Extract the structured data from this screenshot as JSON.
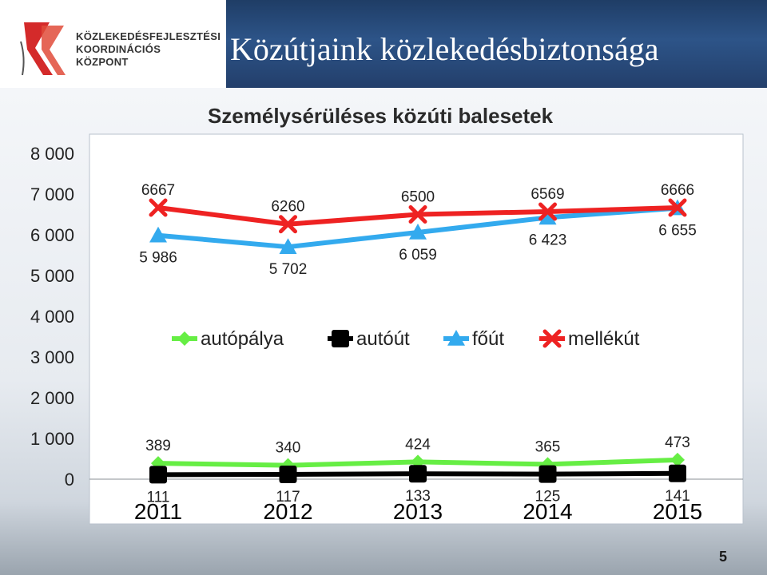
{
  "header": {
    "logo_lines": [
      "KÖZLEKEDÉSFEJLESZTÉSI",
      "KOORDINÁCIÓS",
      "KÖZPONT"
    ],
    "title": "Közútjaink közlekedésbiztonsága"
  },
  "page_number": "5",
  "colors": {
    "autopalya": "#66ee44",
    "autout": "#000000",
    "fout": "#33aaee",
    "mellekut": "#ee2222",
    "title_bar": "#2d5488"
  },
  "chart_data": {
    "type": "line",
    "title": "Személysérüléses közúti balesetek",
    "categories": [
      "2011",
      "2012",
      "2013",
      "2014",
      "2015"
    ],
    "ylim": [
      0,
      8000
    ],
    "yticks": [
      0,
      1000,
      2000,
      3000,
      4000,
      5000,
      6000,
      7000,
      8000
    ],
    "ytick_labels": [
      "0",
      "1 000",
      "2 000",
      "3 000",
      "4 000",
      "5 000",
      "6 000",
      "7 000",
      "8 000"
    ],
    "grid": false,
    "legend_position": "center",
    "series": [
      {
        "key": "autopalya",
        "name": "autópálya",
        "marker": "diamond",
        "values": [
          389,
          340,
          424,
          365,
          473
        ],
        "labels": [
          "389",
          "340",
          "424",
          "365",
          "473"
        ],
        "label_side": "above"
      },
      {
        "key": "autout",
        "name": "autóút",
        "marker": "square",
        "values": [
          111,
          117,
          133,
          125,
          141
        ],
        "labels": [
          "111",
          "117",
          "133",
          "125",
          "141"
        ],
        "label_side": "below"
      },
      {
        "key": "fout",
        "name": "főút",
        "marker": "triangle",
        "values": [
          5986,
          5702,
          6059,
          6423,
          6655
        ],
        "labels": [
          "5 986",
          "5 702",
          "6 059",
          "6 423",
          "6 655"
        ],
        "label_side": "below"
      },
      {
        "key": "mellekut",
        "name": "mellékút",
        "marker": "x",
        "values": [
          6667,
          6260,
          6500,
          6569,
          6666
        ],
        "labels": [
          "6667",
          "6260",
          "6500",
          "6569",
          "6666"
        ],
        "label_side": "above"
      }
    ]
  }
}
